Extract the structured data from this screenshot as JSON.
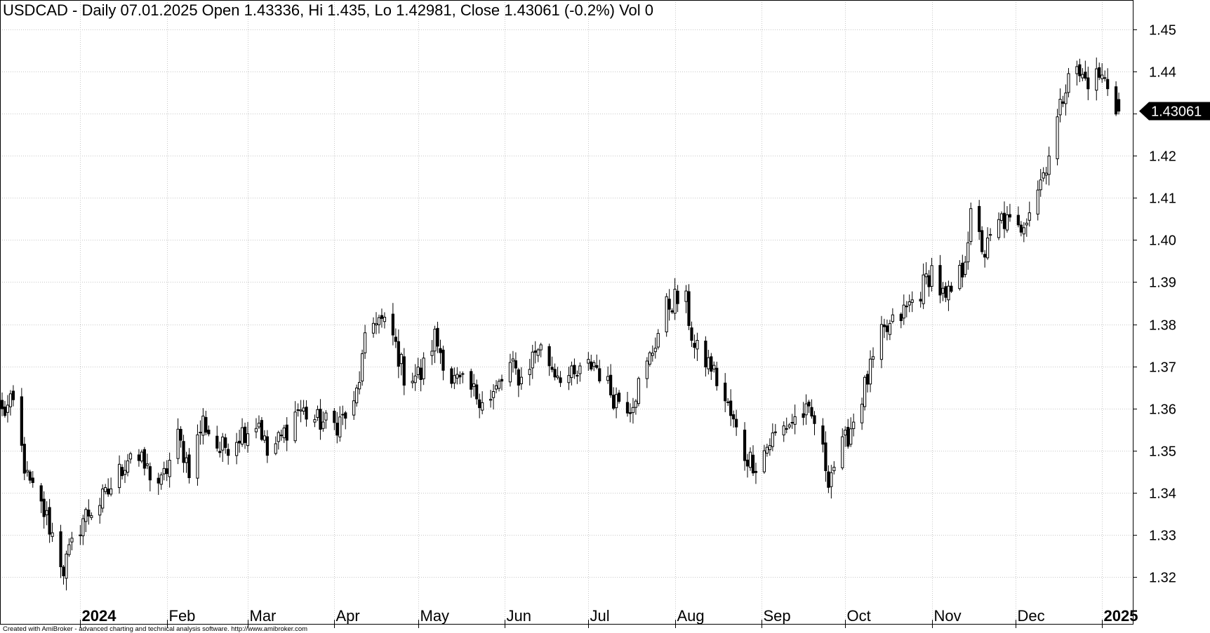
{
  "chart_data": {
    "type": "candlestick",
    "title": "USDCAD - Daily 07.01.2025 Open 1.43336, Hi 1.435, Lo 1.42981, Close 1.43061 (-0.2%) Vol 0",
    "symbol": "USDCAD",
    "interval": "Daily",
    "last_bar": {
      "date": "07.01.2025",
      "open": 1.43336,
      "high": 1.435,
      "low": 1.42981,
      "close": 1.43061,
      "change_pct": -0.2,
      "volume": 0
    },
    "last_price_label": "1.43061",
    "y_axis": {
      "position": "right",
      "ticks": [
        "1.45",
        "1.44",
        "1.43",
        "1.42",
        "1.41",
        "1.40",
        "1.39",
        "1.38",
        "1.37",
        "1.36",
        "1.35",
        "1.34",
        "1.33",
        "1.32"
      ],
      "range": [
        1.3125,
        1.4585
      ]
    },
    "x_axis": {
      "range": [
        "2023-12-04",
        "2025-01-10"
      ],
      "ticks": [
        {
          "label": "2024",
          "date": "2024-01-01",
          "bold": true
        },
        {
          "label": "Feb",
          "date": "2024-02-01"
        },
        {
          "label": "Mar",
          "date": "2024-03-01"
        },
        {
          "label": "Apr",
          "date": "2024-04-01"
        },
        {
          "label": "May",
          "date": "2024-05-01"
        },
        {
          "label": "Jun",
          "date": "2024-06-01"
        },
        {
          "label": "Jul",
          "date": "2024-07-01"
        },
        {
          "label": "Aug",
          "date": "2024-08-01"
        },
        {
          "label": "Sep",
          "date": "2024-09-01"
        },
        {
          "label": "Oct",
          "date": "2024-10-01"
        },
        {
          "label": "Nov",
          "date": "2024-11-01"
        },
        {
          "label": "Dec",
          "date": "2024-12-01"
        },
        {
          "label": "2025",
          "date": "2025-01-01",
          "bold": true
        }
      ]
    },
    "grid": true,
    "close_path": [
      [
        "2023-12-04",
        1.359
      ],
      [
        "2023-12-08",
        1.361
      ],
      [
        "2023-12-13",
        1.343
      ],
      [
        "2023-12-20",
        1.334
      ],
      [
        "2023-12-26",
        1.322
      ],
      [
        "2024-01-02",
        1.334
      ],
      [
        "2024-01-10",
        1.339
      ],
      [
        "2024-01-16",
        1.346
      ],
      [
        "2024-01-19",
        1.35
      ],
      [
        "2024-01-24",
        1.346
      ],
      [
        "2024-01-30",
        1.342
      ],
      [
        "2024-02-05",
        1.353
      ],
      [
        "2024-02-09",
        1.346
      ],
      [
        "2024-02-14",
        1.357
      ],
      [
        "2024-02-20",
        1.35
      ],
      [
        "2024-02-27",
        1.354
      ],
      [
        "2024-03-05",
        1.357
      ],
      [
        "2024-03-08",
        1.349
      ],
      [
        "2024-03-13",
        1.353
      ],
      [
        "2024-03-19",
        1.36
      ],
      [
        "2024-03-26",
        1.357
      ],
      [
        "2024-04-01",
        1.356
      ],
      [
        "2024-04-08",
        1.36
      ],
      [
        "2024-04-12",
        1.375
      ],
      [
        "2024-04-16",
        1.382
      ],
      [
        "2024-04-22",
        1.377
      ],
      [
        "2024-04-26",
        1.368
      ],
      [
        "2024-05-02",
        1.368
      ],
      [
        "2024-05-07",
        1.377
      ],
      [
        "2024-05-13",
        1.367
      ],
      [
        "2024-05-20",
        1.364
      ],
      [
        "2024-05-27",
        1.362
      ],
      [
        "2024-06-03",
        1.37
      ],
      [
        "2024-06-07",
        1.367
      ],
      [
        "2024-06-13",
        1.375
      ],
      [
        "2024-06-19",
        1.369
      ],
      [
        "2024-06-26",
        1.367
      ],
      [
        "2024-07-03",
        1.371
      ],
      [
        "2024-07-10",
        1.363
      ],
      [
        "2024-07-16",
        1.361
      ],
      [
        "2024-07-22",
        1.37
      ],
      [
        "2024-07-29",
        1.384
      ],
      [
        "2024-08-01",
        1.386
      ],
      [
        "2024-08-05",
        1.385
      ],
      [
        "2024-08-08",
        1.374
      ],
      [
        "2024-08-14",
        1.37
      ],
      [
        "2024-08-20",
        1.36
      ],
      [
        "2024-08-26",
        1.349
      ],
      [
        "2024-08-30",
        1.347
      ],
      [
        "2024-09-05",
        1.353
      ],
      [
        "2024-09-10",
        1.356
      ],
      [
        "2024-09-16",
        1.359
      ],
      [
        "2024-09-20",
        1.357
      ],
      [
        "2024-09-25",
        1.344
      ],
      [
        "2024-10-01",
        1.352
      ],
      [
        "2024-10-07",
        1.363
      ],
      [
        "2024-10-14",
        1.377
      ],
      [
        "2024-10-21",
        1.382
      ],
      [
        "2024-10-28",
        1.388
      ],
      [
        "2024-11-01",
        1.393
      ],
      [
        "2024-11-06",
        1.385
      ],
      [
        "2024-11-12",
        1.393
      ],
      [
        "2024-11-15",
        1.405
      ],
      [
        "2024-11-20",
        1.397
      ],
      [
        "2024-11-26",
        1.405
      ],
      [
        "2024-12-02",
        1.402
      ],
      [
        "2024-12-06",
        1.408
      ],
      [
        "2024-12-11",
        1.416
      ],
      [
        "2024-12-17",
        1.431
      ],
      [
        "2024-12-20",
        1.441
      ],
      [
        "2024-12-26",
        1.438
      ],
      [
        "2024-12-31",
        1.439
      ],
      [
        "2025-01-03",
        1.437
      ],
      [
        "2025-01-07",
        1.43061
      ]
    ],
    "ohlc_note": "Daily OHLC bars for trading days between the close_path anchors, drawn as hollow (up) and filled (down) candles."
  },
  "footer": {
    "credit": "Created with AmiBroker - advanced charting and technical analysis software. http://www.amibroker.com"
  }
}
